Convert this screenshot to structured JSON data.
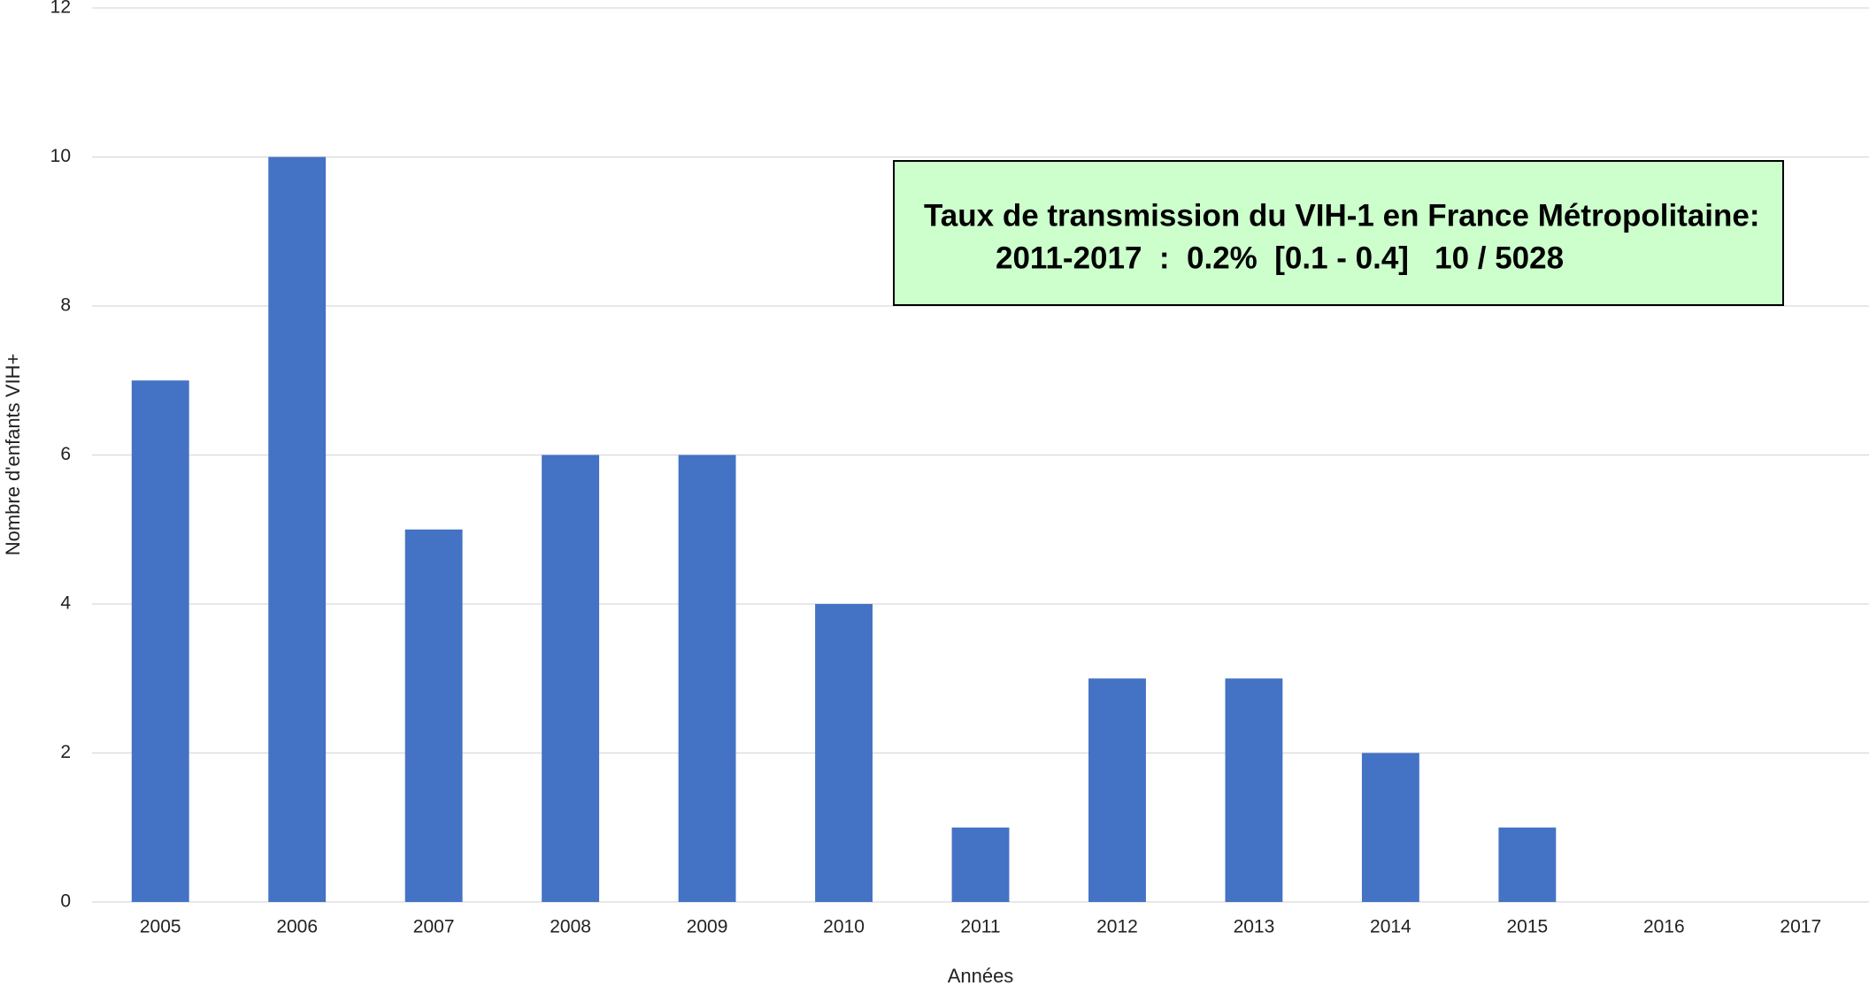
{
  "chart_data": {
    "type": "bar",
    "categories": [
      "2005",
      "2006",
      "2007",
      "2008",
      "2009",
      "2010",
      "2011",
      "2012",
      "2013",
      "2014",
      "2015",
      "2016",
      "2017"
    ],
    "values": [
      7,
      10,
      5,
      6,
      6,
      4,
      1,
      3,
      3,
      2,
      1,
      0,
      0
    ],
    "color": "#4472c4",
    "ylim": [
      0,
      12
    ],
    "yticks": [
      0,
      2,
      4,
      6,
      8,
      10,
      12
    ],
    "grid": true,
    "x_label": "Années",
    "y_label": "Nombre d'enfants VIH+",
    "annotations": [
      "Taux de transmission du VIH-1 en France Métropolitaine:",
      "2011-2017  :  0.2%  [0.1 - 0.4]   10 / 5028"
    ]
  }
}
